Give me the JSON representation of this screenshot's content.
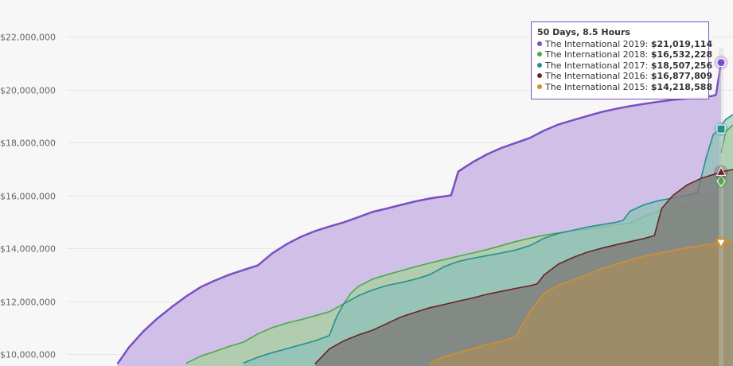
{
  "chart_data": {
    "type": "area",
    "ylim": [
      9600000,
      23000000
    ],
    "xlim": [
      0,
      50.6
    ],
    "y_ticks": [
      10000000,
      12000000,
      14000000,
      16000000,
      18000000,
      20000000,
      22000000
    ],
    "y_tick_labels": [
      "$10,000,000",
      "$12,000,000",
      "$14,000,000",
      "$16,000,000",
      "$18,000,000",
      "$20,000,000",
      "$22,000,000"
    ],
    "x_unit": "days",
    "grid": true,
    "tooltip": {
      "title": "50 Days, 8.5 Hours",
      "rows": [
        {
          "label": "The International 2019",
          "value": "$21,019,114",
          "color": "#7b4fc2"
        },
        {
          "label": "The International 2018",
          "value": "$16,532,228",
          "color": "#4caa48"
        },
        {
          "label": "The International 2017",
          "value": "$18,507,256",
          "color": "#23918e"
        },
        {
          "label": "The International 2016",
          "value": "$16,877,809",
          "color": "#6b2424"
        },
        {
          "label": "The International 2015",
          "value": "$14,218,588",
          "color": "#d38f2e"
        }
      ]
    },
    "series": [
      {
        "name": "The International 2019",
        "color": "#7b4fc2",
        "fill": "#c9b6e4",
        "marker": "circle",
        "x": [
          8.2,
          9.0,
          10.0,
          11.0,
          12.0,
          13.0,
          14.0,
          15.0,
          16.0,
          17.0,
          18.0,
          19.0,
          20.0,
          21.0,
          22.0,
          23.0,
          24.0,
          25.0,
          26.0,
          27.0,
          28.0,
          29.0,
          30.0,
          31.5,
          32.0,
          33.0,
          34.0,
          35.0,
          36.0,
          37.0,
          38.0,
          39.0,
          40.0,
          41.0,
          42.0,
          43.0,
          44.0,
          45.0,
          46.0,
          47.0,
          48.0,
          48.9,
          49.7,
          50.0,
          50.35
        ],
        "y": [
          9630000,
          10250000,
          10850000,
          11350000,
          11780000,
          12180000,
          12530000,
          12780000,
          13000000,
          13180000,
          13350000,
          13800000,
          14150000,
          14430000,
          14650000,
          14820000,
          14980000,
          15170000,
          15370000,
          15500000,
          15640000,
          15770000,
          15880000,
          16000000,
          16900000,
          17250000,
          17550000,
          17790000,
          17980000,
          18170000,
          18450000,
          18680000,
          18840000,
          19000000,
          19150000,
          19270000,
          19370000,
          19460000,
          19540000,
          19610000,
          19660000,
          19700000,
          19750000,
          19800000,
          21019114
        ]
      },
      {
        "name": "The International 2018",
        "color": "#4caa48",
        "fill": "#a8cf9e",
        "marker": "diamond",
        "x": [
          13.0,
          14.0,
          15.0,
          16.0,
          17.0,
          18.0,
          19.0,
          20.0,
          21.0,
          22.0,
          23.0,
          24.0,
          24.5,
          25.0,
          26.0,
          27.0,
          28.0,
          29.0,
          30.0,
          31.0,
          32.0,
          33.0,
          34.0,
          35.0,
          36.0,
          37.0,
          38.0,
          39.0,
          40.0,
          41.0,
          42.0,
          43.0,
          44.0,
          45.0,
          46.0,
          47.0,
          48.0,
          49.0,
          49.7,
          50.35
        ],
        "y": [
          9650000,
          9920000,
          10100000,
          10290000,
          10450000,
          10760000,
          11000000,
          11170000,
          11300000,
          11450000,
          11600000,
          11900000,
          12300000,
          12550000,
          12830000,
          13000000,
          13150000,
          13300000,
          13440000,
          13570000,
          13700000,
          13820000,
          13950000,
          14100000,
          14250000,
          14380000,
          14490000,
          14580000,
          14660000,
          14720000,
          14800000,
          14880000,
          14950000,
          15200000,
          15400000,
          15520000,
          15600000,
          15670000,
          15800000,
          16532228
        ]
      },
      {
        "name": "The International 2017",
        "color": "#23918e",
        "fill": "#8fc2ba",
        "marker": "square",
        "x": [
          17.0,
          18.0,
          19.0,
          20.0,
          21.0,
          22.0,
          23.0,
          23.5,
          24.0,
          25.0,
          26.0,
          27.0,
          28.0,
          29.0,
          30.0,
          31.0,
          32.0,
          33.0,
          34.0,
          35.0,
          36.0,
          37.0,
          38.0,
          39.0,
          40.0,
          41.0,
          42.0,
          43.0,
          43.5,
          44.0,
          45.0,
          46.0,
          47.0,
          48.0,
          48.7,
          49.3,
          49.8,
          50.35
        ],
        "y": [
          9660000,
          9880000,
          10050000,
          10200000,
          10350000,
          10500000,
          10700000,
          11400000,
          11900000,
          12200000,
          12420000,
          12590000,
          12700000,
          12830000,
          13000000,
          13300000,
          13500000,
          13620000,
          13720000,
          13820000,
          13930000,
          14100000,
          14380000,
          14560000,
          14680000,
          14800000,
          14890000,
          14980000,
          15050000,
          15400000,
          15650000,
          15800000,
          15900000,
          16000000,
          16100000,
          17400000,
          18300000,
          18507256
        ]
      },
      {
        "name": "The International 2016",
        "color": "#6b2424",
        "fill": "#7d7a77",
        "marker": "triangle",
        "x": [
          22.0,
          23.0,
          24.0,
          25.0,
          26.0,
          27.0,
          28.0,
          29.0,
          30.0,
          31.0,
          32.0,
          33.0,
          34.0,
          35.0,
          36.0,
          37.0,
          37.5,
          38.0,
          39.0,
          40.0,
          41.0,
          42.0,
          43.0,
          44.0,
          45.0,
          45.7,
          46.2,
          47.0,
          48.0,
          49.0,
          50.35
        ],
        "y": [
          9630000,
          10200000,
          10500000,
          10720000,
          10900000,
          11150000,
          11400000,
          11580000,
          11750000,
          11870000,
          12000000,
          12120000,
          12260000,
          12370000,
          12480000,
          12580000,
          12650000,
          13000000,
          13400000,
          13650000,
          13850000,
          14000000,
          14130000,
          14250000,
          14370000,
          14480000,
          15500000,
          16000000,
          16400000,
          16650000,
          16877809
        ]
      },
      {
        "name": "The International 2015",
        "color": "#d38f2e",
        "fill": "#a48d5f",
        "marker": "triangle-down",
        "x": [
          30.0,
          31.0,
          32.0,
          33.0,
          34.0,
          35.0,
          36.0,
          37.0,
          38.0,
          39.0,
          40.0,
          41.0,
          42.0,
          43.0,
          44.0,
          45.0,
          46.0,
          47.0,
          48.0,
          49.0,
          50.35
        ],
        "y": [
          9650000,
          9900000,
          10050000,
          10200000,
          10360000,
          10480000,
          10650000,
          11600000,
          12300000,
          12600000,
          12800000,
          13000000,
          13220000,
          13390000,
          13560000,
          13700000,
          13810000,
          13920000,
          14020000,
          14100000,
          14218588
        ]
      }
    ]
  }
}
